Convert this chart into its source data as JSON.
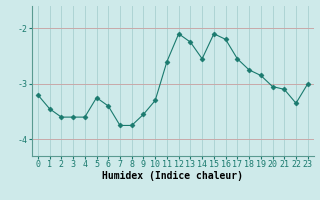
{
  "x": [
    0,
    1,
    2,
    3,
    4,
    5,
    6,
    7,
    8,
    9,
    10,
    11,
    12,
    13,
    14,
    15,
    16,
    17,
    18,
    19,
    20,
    21,
    22,
    23
  ],
  "y": [
    -3.2,
    -3.45,
    -3.6,
    -3.6,
    -3.6,
    -3.25,
    -3.4,
    -3.75,
    -3.75,
    -3.55,
    -3.3,
    -2.6,
    -2.1,
    -2.25,
    -2.55,
    -2.1,
    -2.2,
    -2.55,
    -2.75,
    -2.85,
    -3.05,
    -3.1,
    -3.35,
    -3.0
  ],
  "xlabel": "Humidex (Indice chaleur)",
  "ylabel": "",
  "ylim": [
    -4.3,
    -1.6
  ],
  "xlim": [
    -0.5,
    23.5
  ],
  "yticks": [
    -4,
    -3,
    -2
  ],
  "xticks": [
    0,
    1,
    2,
    3,
    4,
    5,
    6,
    7,
    8,
    9,
    10,
    11,
    12,
    13,
    14,
    15,
    16,
    17,
    18,
    19,
    20,
    21,
    22,
    23
  ],
  "line_color": "#1a7a6e",
  "marker": "D",
  "marker_size": 2.5,
  "bg_color": "#ceeaea",
  "grid_v_color": "#aed4d4",
  "grid_h_color": "#c8a8a8",
  "fig_bg": "#ceeaea",
  "xlabel_fontsize": 7,
  "tick_fontsize": 6
}
